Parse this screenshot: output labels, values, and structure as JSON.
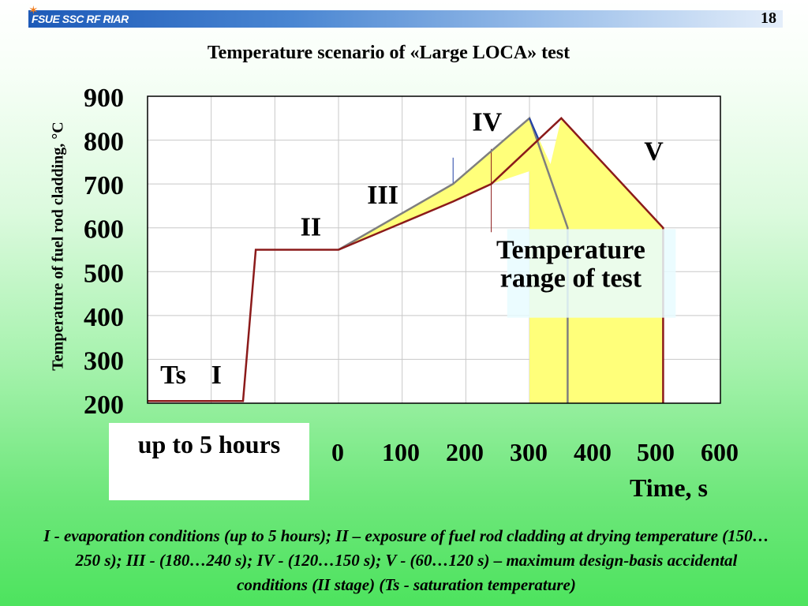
{
  "header": {
    "org": "FSUE SSC RF RIAR",
    "page_number": "18"
  },
  "footnote": {
    "hours": "up to 5 hours",
    "caption": "I - evaporation conditions (up to 5 hours); II – exposure of fuel rod cladding at drying temperature (150…250 s); III - (180…240 s); IV - (120…150 s); V - (60…120 s) – maximum design-basis accidental conditions (II stage) (Ts - saturation temperature)"
  },
  "colors": {
    "lower_curve": "#8b1a1a",
    "upper_curve": "#7f7f7f",
    "band_fill": "#ffff7a",
    "stage_marker": "#1f3fa6"
  },
  "chart_data": {
    "type": "line",
    "title": "Temperature scenario of «Large LOCA» test",
    "xlabel": "Time, s",
    "ylabel": "Temperature of fuel rod cladding, °C",
    "ylim": [
      200,
      900
    ],
    "y_ticks": [
      "900",
      "800",
      "700",
      "600",
      "500",
      "400",
      "300",
      "200"
    ],
    "x_ticks": [
      {
        "label": "0",
        "x": 0
      },
      {
        "label": "100",
        "x": 100
      },
      {
        "label": "200",
        "x": 200
      },
      {
        "label": "300",
        "x": 300
      },
      {
        "label": "400",
        "x": 400
      },
      {
        "label": "500",
        "x": 500
      },
      {
        "label": "600",
        "x": 600
      }
    ],
    "xlim": [
      -300,
      600
    ],
    "grid": true,
    "series": [
      {
        "x": [
          -300,
          -150,
          -130,
          0,
          180,
          240,
          350,
          510,
          510
        ],
        "y": [
          205,
          205,
          550,
          550,
          660,
          700,
          850,
          600,
          200
        ]
      },
      {
        "x": [
          0,
          180,
          300,
          360,
          360
        ],
        "y": [
          550,
          700,
          850,
          600,
          200
        ]
      }
    ],
    "stage_labels": [
      {
        "text": "Ts",
        "x": -280,
        "y": 245
      },
      {
        "text": "I",
        "x": -200,
        "y": 245
      },
      {
        "text": "II",
        "x": -60,
        "y": 582
      },
      {
        "text": "III",
        "x": 45,
        "y": 655
      },
      {
        "text": "IV",
        "x": 210,
        "y": 822
      },
      {
        "text": "V",
        "x": 480,
        "y": 755
      }
    ],
    "annotations": [
      {
        "text": "Temperature",
        "x": 365,
        "y": 530
      },
      {
        "text": "range of test",
        "x": 365,
        "y": 465
      }
    ]
  }
}
